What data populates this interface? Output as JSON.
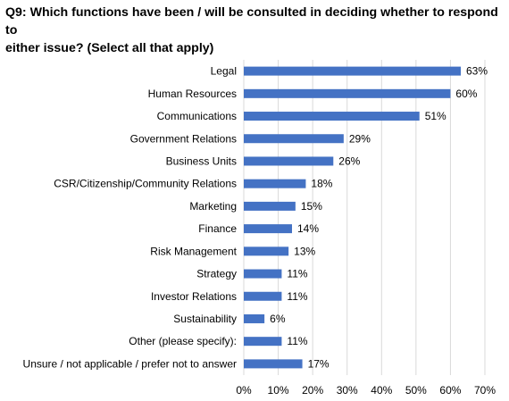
{
  "title": {
    "line1": "Q9: Which functions have been / will be consulted in deciding whether to respond to",
    "line2": "either issue? (Select all that apply)"
  },
  "colors": {
    "bar": "#4472C4",
    "gridline": "#D9D9D9"
  },
  "chart_data": {
    "type": "bar",
    "orientation": "horizontal",
    "title": "Q9: Which functions have been / will be consulted in deciding whether to respond to either issue? (Select all that apply)",
    "categories": [
      "Legal",
      "Human Resources",
      "Communications",
      "Government Relations",
      "Business Units",
      "CSR/Citizenship/Community Relations",
      "Marketing",
      "Finance",
      "Risk Management",
      "Strategy",
      "Investor Relations",
      "Sustainability",
      "Other (please specify):",
      "Unsure / not applicable / prefer not to answer"
    ],
    "values": [
      63,
      60,
      51,
      29,
      26,
      18,
      15,
      14,
      13,
      11,
      11,
      6,
      11,
      17
    ],
    "data_labels": [
      "63%",
      "60%",
      "51%",
      "29%",
      "26%",
      "18%",
      "15%",
      "14%",
      "13%",
      "11%",
      "11%",
      "6%",
      "11%",
      "17%"
    ],
    "xlim": [
      0,
      70
    ],
    "xticks": [
      "0%",
      "10%",
      "20%",
      "30%",
      "40%",
      "50%",
      "60%",
      "70%"
    ],
    "xlabel": "",
    "ylabel": "",
    "grid": true,
    "legend": "none"
  }
}
